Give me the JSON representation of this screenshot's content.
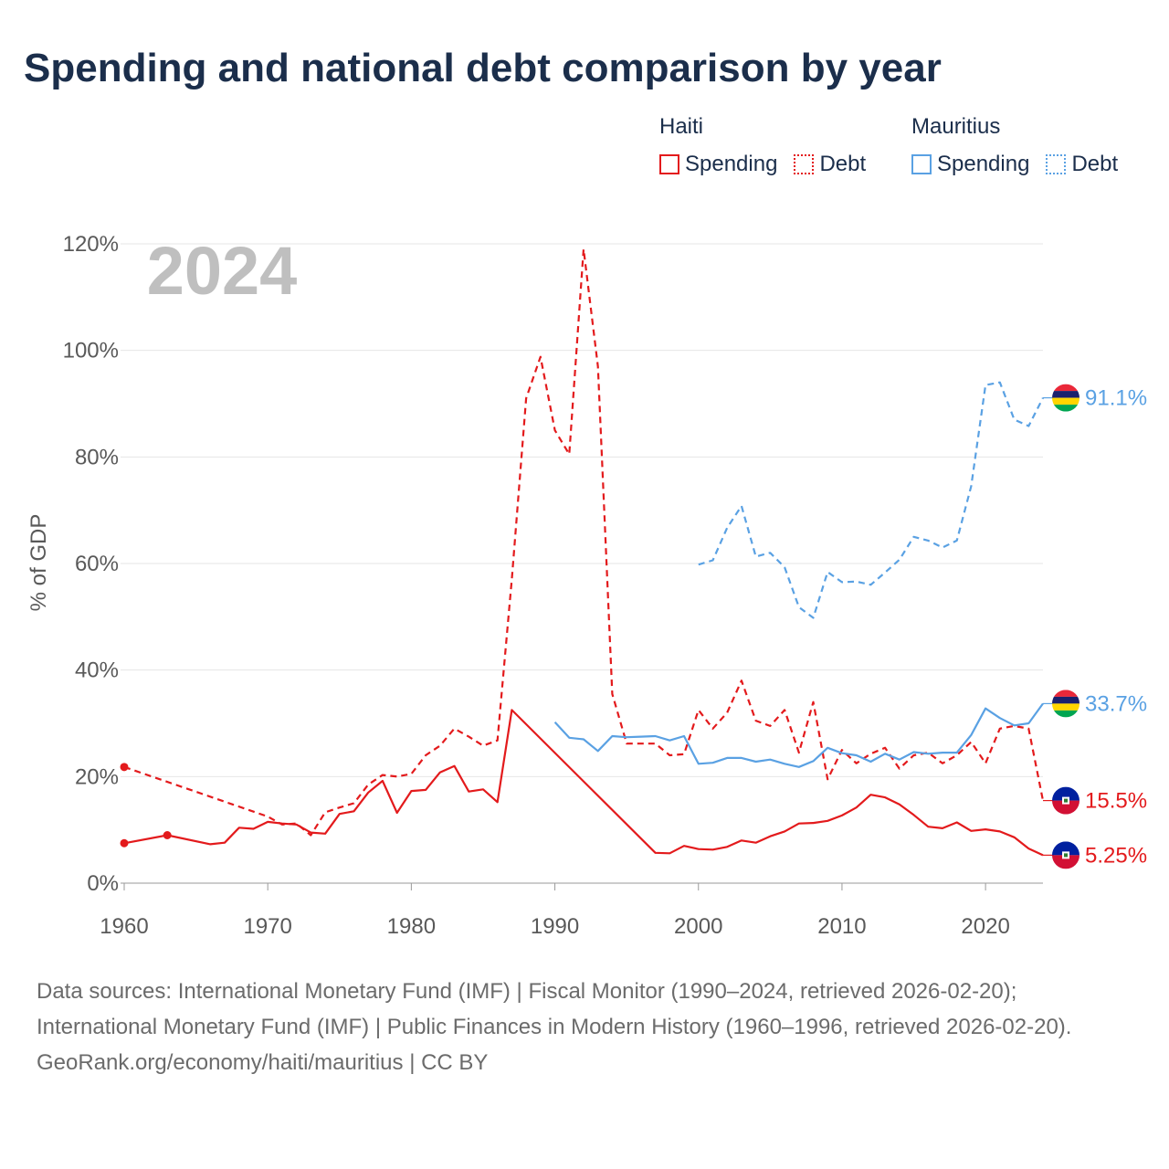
{
  "title": "Spending and national debt comparison by year",
  "legend": {
    "groups": [
      {
        "country": "Haiti",
        "spending_label": "Spending",
        "debt_label": "Debt",
        "color": "#e31a1c"
      },
      {
        "country": "Mauritius",
        "spending_label": "Spending",
        "debt_label": "Debt",
        "color": "#5aa1e3"
      }
    ]
  },
  "footer": {
    "sources": "Data sources: International Monetary Fund (IMF) | Fiscal Monitor (1990–2024, retrieved 2026-02-20); International Monetary Fund (IMF) | Public Finances in Modern History (1960–1996, retrieved 2026-02-20).",
    "credit": "GeoRank.org/economy/haiti/mauritius | CC BY"
  },
  "chart_data": {
    "type": "line",
    "title": "Spending and national debt comparison by year",
    "year_label": "2024",
    "ylabel": "% of GDP",
    "xlabel": "",
    "xlim": [
      1960,
      2024
    ],
    "ylim": [
      0,
      120
    ],
    "x_ticks": [
      "1960",
      "1970",
      "1980",
      "1990",
      "2000",
      "2010",
      "2020"
    ],
    "y_ticks": [
      "0%",
      "20%",
      "40%",
      "60%",
      "80%",
      "100%",
      "120%"
    ],
    "grid": true,
    "series": [
      {
        "name": "Haiti Spending",
        "color": "#e31a1c",
        "dash": false,
        "end_label": "5.25%",
        "points": [
          [
            1960,
            7.5
          ],
          [
            1963,
            9.0
          ],
          [
            1966,
            7.3
          ],
          [
            1967,
            7.6
          ],
          [
            1968,
            10.4
          ],
          [
            1969,
            10.2
          ],
          [
            1970,
            11.5
          ],
          [
            1971,
            11.2
          ],
          [
            1972,
            11.0
          ],
          [
            1973,
            9.5
          ],
          [
            1974,
            9.3
          ],
          [
            1975,
            13.0
          ],
          [
            1976,
            13.5
          ],
          [
            1977,
            17.0
          ],
          [
            1978,
            19.2
          ],
          [
            1979,
            13.2
          ],
          [
            1980,
            17.3
          ],
          [
            1981,
            17.5
          ],
          [
            1982,
            20.8
          ],
          [
            1983,
            22.0
          ],
          [
            1984,
            17.2
          ],
          [
            1985,
            17.6
          ],
          [
            1986,
            15.2
          ],
          [
            1987,
            32.5
          ],
          [
            1997,
            5.7
          ],
          [
            1998,
            5.6
          ],
          [
            1999,
            7.0
          ],
          [
            2000,
            6.4
          ],
          [
            2001,
            6.3
          ],
          [
            2002,
            6.8
          ],
          [
            2003,
            8.0
          ],
          [
            2004,
            7.6
          ],
          [
            2005,
            8.8
          ],
          [
            2006,
            9.7
          ],
          [
            2007,
            11.2
          ],
          [
            2008,
            11.3
          ],
          [
            2009,
            11.7
          ],
          [
            2010,
            12.7
          ],
          [
            2011,
            14.2
          ],
          [
            2012,
            16.6
          ],
          [
            2013,
            16.1
          ],
          [
            2014,
            14.8
          ],
          [
            2015,
            12.8
          ],
          [
            2016,
            10.6
          ],
          [
            2017,
            10.3
          ],
          [
            2018,
            11.4
          ],
          [
            2019,
            9.8
          ],
          [
            2020,
            10.1
          ],
          [
            2021,
            9.7
          ],
          [
            2022,
            8.6
          ],
          [
            2023,
            6.5
          ],
          [
            2024,
            5.25
          ]
        ]
      },
      {
        "name": "Haiti Debt",
        "color": "#e31a1c",
        "dash": true,
        "end_label": "15.5%",
        "points": [
          [
            1960,
            21.8
          ],
          [
            1970,
            12.5
          ],
          [
            1971,
            11.0
          ],
          [
            1972,
            11.2
          ],
          [
            1973,
            9.0
          ],
          [
            1974,
            13.3
          ],
          [
            1975,
            14.2
          ],
          [
            1976,
            15.0
          ],
          [
            1977,
            18.5
          ],
          [
            1978,
            20.3
          ],
          [
            1979,
            20.0
          ],
          [
            1980,
            20.5
          ],
          [
            1981,
            24.0
          ],
          [
            1982,
            25.8
          ],
          [
            1983,
            29.0
          ],
          [
            1984,
            27.5
          ],
          [
            1985,
            25.8
          ],
          [
            1986,
            26.8
          ],
          [
            1987,
            57.0
          ],
          [
            1988,
            91.0
          ],
          [
            1989,
            98.8
          ],
          [
            1990,
            85.0
          ],
          [
            1991,
            80.5
          ],
          [
            1992,
            119.0
          ],
          [
            1993,
            97.0
          ],
          [
            1994,
            35.5
          ],
          [
            1995,
            26.2
          ],
          [
            1996,
            26.2
          ],
          [
            1997,
            26.2
          ],
          [
            1998,
            24.0
          ],
          [
            1999,
            24.2
          ],
          [
            2000,
            32.5
          ],
          [
            2001,
            29.0
          ],
          [
            2002,
            32.0
          ],
          [
            2003,
            38.0
          ],
          [
            2004,
            30.5
          ],
          [
            2005,
            29.5
          ],
          [
            2006,
            32.5
          ],
          [
            2007,
            24.5
          ],
          [
            2008,
            34.0
          ],
          [
            2009,
            19.5
          ],
          [
            2010,
            25.0
          ],
          [
            2011,
            22.5
          ],
          [
            2012,
            24.3
          ],
          [
            2013,
            25.4
          ],
          [
            2014,
            21.5
          ],
          [
            2015,
            24.0
          ],
          [
            2016,
            24.5
          ],
          [
            2017,
            22.5
          ],
          [
            2018,
            24.0
          ],
          [
            2019,
            26.5
          ],
          [
            2020,
            22.5
          ],
          [
            2021,
            29.0
          ],
          [
            2022,
            29.5
          ],
          [
            2023,
            29.0
          ],
          [
            2024,
            15.5
          ]
        ]
      },
      {
        "name": "Mauritius Spending",
        "color": "#5aa1e3",
        "dash": false,
        "end_label": "33.7%",
        "points": [
          [
            1990,
            30.2
          ],
          [
            1991,
            27.3
          ],
          [
            1992,
            27.0
          ],
          [
            1993,
            24.8
          ],
          [
            1994,
            27.6
          ],
          [
            1995,
            27.4
          ],
          [
            1996,
            27.5
          ],
          [
            1997,
            27.6
          ],
          [
            1998,
            26.8
          ],
          [
            1999,
            27.6
          ],
          [
            2000,
            22.4
          ],
          [
            2001,
            22.6
          ],
          [
            2002,
            23.5
          ],
          [
            2003,
            23.5
          ],
          [
            2004,
            22.8
          ],
          [
            2005,
            23.2
          ],
          [
            2006,
            22.4
          ],
          [
            2007,
            21.8
          ],
          [
            2008,
            22.9
          ],
          [
            2009,
            25.4
          ],
          [
            2010,
            24.4
          ],
          [
            2011,
            24.0
          ],
          [
            2012,
            22.8
          ],
          [
            2013,
            24.3
          ],
          [
            2014,
            23.2
          ],
          [
            2015,
            24.6
          ],
          [
            2016,
            24.3
          ],
          [
            2017,
            24.5
          ],
          [
            2018,
            24.5
          ],
          [
            2019,
            27.8
          ],
          [
            2020,
            32.8
          ],
          [
            2021,
            31.0
          ],
          [
            2022,
            29.6
          ],
          [
            2023,
            30.0
          ],
          [
            2024,
            33.7
          ]
        ]
      },
      {
        "name": "Mauritius Debt",
        "color": "#5aa1e3",
        "dash": true,
        "end_label": "91.1%",
        "points": [
          [
            2000,
            59.8
          ],
          [
            2001,
            60.6
          ],
          [
            2002,
            66.7
          ],
          [
            2003,
            70.8
          ],
          [
            2004,
            61.3
          ],
          [
            2005,
            62.0
          ],
          [
            2006,
            59.3
          ],
          [
            2007,
            51.8
          ],
          [
            2008,
            49.8
          ],
          [
            2009,
            58.4
          ],
          [
            2010,
            56.5
          ],
          [
            2011,
            56.6
          ],
          [
            2012,
            56.0
          ],
          [
            2013,
            58.3
          ],
          [
            2014,
            60.7
          ],
          [
            2015,
            65.0
          ],
          [
            2016,
            64.3
          ],
          [
            2017,
            63.0
          ],
          [
            2018,
            64.3
          ],
          [
            2019,
            74.5
          ],
          [
            2020,
            93.5
          ],
          [
            2021,
            94.0
          ],
          [
            2022,
            87.0
          ],
          [
            2023,
            85.8
          ],
          [
            2024,
            91.1
          ]
        ]
      }
    ],
    "markers": [
      {
        "series": "Haiti Spending",
        "year": 1960,
        "value": 7.5
      },
      {
        "series": "Haiti Spending",
        "year": 1963,
        "value": 9.0
      },
      {
        "series": "Haiti Debt",
        "year": 1960,
        "value": 21.8
      }
    ]
  }
}
